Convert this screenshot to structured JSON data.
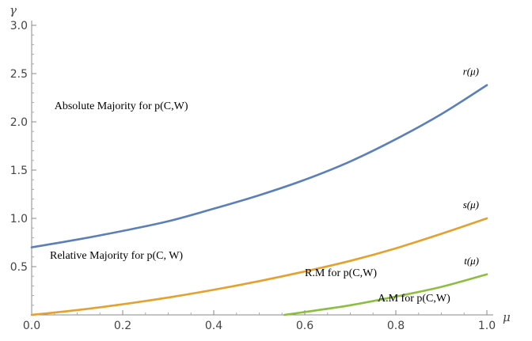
{
  "chart_data": {
    "type": "line",
    "title": "",
    "xlabel": "μ",
    "ylabel": "γ",
    "xlim": [
      0,
      1.0
    ],
    "ylim": [
      0,
      3.0
    ],
    "grid": false,
    "x_ticks": [
      "0.0",
      "0.2",
      "0.4",
      "0.6",
      "0.8",
      "1.0"
    ],
    "y_ticks": [
      "0.5",
      "1.0",
      "1.5",
      "2.0",
      "2.5",
      "3.0"
    ],
    "series": [
      {
        "name": "r(μ)",
        "color": "#5b7fb8",
        "x": [
          0,
          0.1,
          0.2,
          0.3,
          0.4,
          0.5,
          0.6,
          0.7,
          0.8,
          0.9,
          1.0
        ],
        "y": [
          0.7,
          0.78,
          0.87,
          0.97,
          1.1,
          1.24,
          1.4,
          1.59,
          1.82,
          2.08,
          2.38
        ]
      },
      {
        "name": "s(μ)",
        "color": "#e6a02e",
        "x": [
          0,
          0.1,
          0.2,
          0.3,
          0.4,
          0.5,
          0.6,
          0.7,
          0.8,
          0.9,
          1.0
        ],
        "y": [
          0.0,
          0.05,
          0.11,
          0.18,
          0.26,
          0.35,
          0.45,
          0.56,
          0.69,
          0.84,
          1.0
        ]
      },
      {
        "name": "t(μ)",
        "color": "#8cbf3f",
        "x": [
          0.555,
          0.6,
          0.7,
          0.8,
          0.9,
          1.0
        ],
        "y": [
          0.0,
          0.03,
          0.1,
          0.19,
          0.29,
          0.42
        ]
      }
    ],
    "annotations": [
      {
        "text": "Absolute Majority for p(C,W)",
        "x": 0.05,
        "y": 2.13
      },
      {
        "text": "Relative Majority for p(C, W)",
        "x": 0.04,
        "y": 0.58
      },
      {
        "text": "R.M for p(C,W)",
        "x": 0.6,
        "y": 0.4
      },
      {
        "text": "A.M for p(C,W)",
        "x": 0.76,
        "y": 0.14
      }
    ]
  }
}
